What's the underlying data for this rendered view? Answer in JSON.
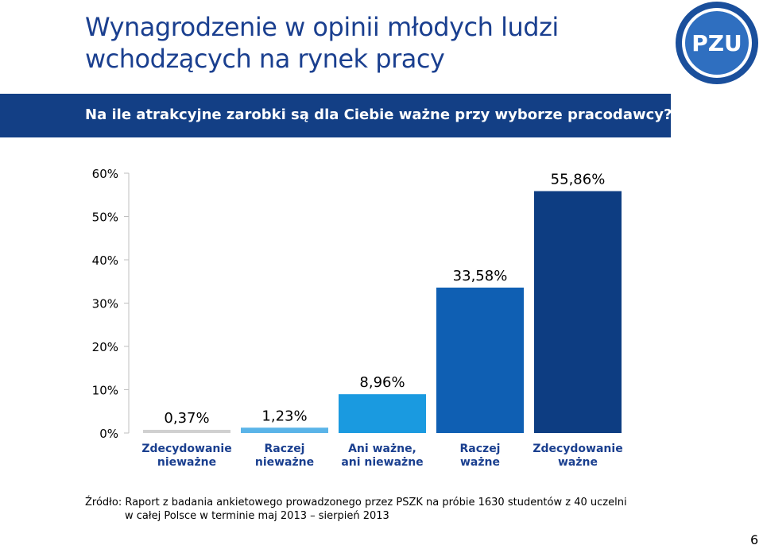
{
  "header": {
    "title_line1": "Wynagrodzenie w opinii młodych ludzi",
    "title_line2": "wchodzących na rynek pracy",
    "logo_text": "PZU"
  },
  "question": "Na ile atrakcyjne zarobki są dla Ciebie ważne przy wyborze pracodawcy?",
  "chart_data": {
    "type": "bar",
    "categories": [
      [
        "Zdecydowanie",
        "nieważne"
      ],
      [
        "Raczej",
        "nieważne"
      ],
      [
        "Ani ważne,",
        "ani nieważne"
      ],
      [
        "Raczej",
        "ważne"
      ],
      [
        "Zdecydowanie",
        "ważne"
      ]
    ],
    "values": [
      0.37,
      1.23,
      8.96,
      33.58,
      55.86
    ],
    "value_labels": [
      "0,37%",
      "1,23%",
      "8,96%",
      "33,58%",
      "55,86%"
    ],
    "bar_colors": [
      "#d0d0d0",
      "#5ab4e8",
      "#1a9ae0",
      "#0f5fb3",
      "#0d3d82"
    ],
    "ylim": [
      0,
      60
    ],
    "yticks": [
      0,
      10,
      20,
      30,
      40,
      50,
      60
    ],
    "ytick_labels": [
      "0%",
      "10%",
      "20%",
      "30%",
      "40%",
      "50%",
      "60%"
    ],
    "grid": false,
    "title": "",
    "xlabel": "",
    "ylabel": ""
  },
  "source": {
    "line1": "Źródło: Raport z badania ankietowego prowadzonego przez PSZK na próbie 1630 studentów z 40 uczelni",
    "line2": "w całej Polsce w terminie maj 2013 – sierpień 2013"
  },
  "page_number": "6"
}
